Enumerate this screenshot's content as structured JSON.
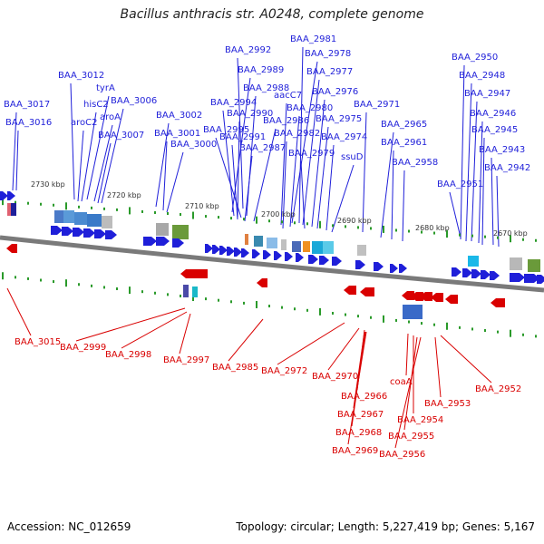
{
  "title": "Bacillus anthracis str. A0248, complete genome",
  "footer": {
    "accession": "Accession: NC_012659",
    "summary": "Topology: circular; Length: 5,227,419 bp; Genes: 5,167"
  },
  "colors": {
    "forward": "#1f1fd9",
    "reverse": "#d90000",
    "backbone": "#7a7a7a",
    "tick": "#2a9a2a"
  },
  "scale_labels": [
    "2730 kbp",
    "2720 kbp",
    "2710 kbp",
    "2700 kbp",
    "2690 kbp",
    "2680 kbp",
    "2670 kbp"
  ],
  "forward_genes": [
    "BAA_3017",
    "BAA_3016",
    "BAA_3012",
    "tyrA",
    "hisC2",
    "aroA",
    "aroC2",
    "BAA_3006",
    "BAA_3007",
    "BAA_3002",
    "BAA_3001",
    "BAA_3000",
    "BAA_2992",
    "BAA_2989",
    "BAA_2988",
    "BAA_2994",
    "BAA_2990",
    "BAA_2995",
    "BAA_2986",
    "BAA_2991",
    "BAA_2987",
    "BAA_2981",
    "BAA_2978",
    "BAA_2977",
    "aacC7",
    "BAA_2976",
    "BAA_2980",
    "BAA_2982",
    "BAA_2975",
    "BAA_2979",
    "BAA_2974",
    "ssuD",
    "BAA_2971",
    "BAA_2965",
    "BAA_2961",
    "BAA_2958",
    "BAA_2950",
    "BAA_2948",
    "BAA_2947",
    "BAA_2946",
    "BAA_2945",
    "BAA_2943",
    "BAA_2942",
    "BAA_2951"
  ],
  "reverse_genes": [
    "BAA_3015",
    "BAA_2999",
    "BAA_2998",
    "BAA_2997",
    "BAA_2985",
    "BAA_2972",
    "BAA_2970",
    "BAA_2966",
    "BAA_2967",
    "BAA_2968",
    "BAA_2969",
    "coaA",
    "BAA_2954",
    "BAA_2955",
    "BAA_2956",
    "BAA_2953",
    "BAA_2952"
  ]
}
